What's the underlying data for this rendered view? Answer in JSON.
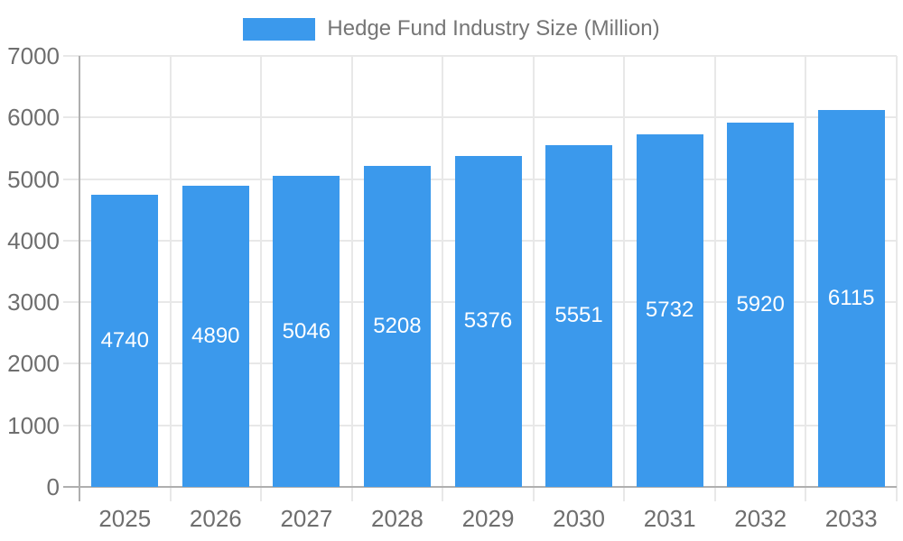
{
  "legend": {
    "label": "Hedge Fund Industry Size (Million)"
  },
  "chart_data": {
    "type": "bar",
    "title": "Hedge Fund Industry Size (Million)",
    "series_name": "Hedge Fund Industry Size (Million)",
    "categories": [
      "2025",
      "2026",
      "2027",
      "2028",
      "2029",
      "2030",
      "2031",
      "2032",
      "2033"
    ],
    "values": [
      4740,
      4890,
      5046,
      5208,
      5376,
      5551,
      5732,
      5920,
      6115
    ],
    "xlabel": "",
    "ylabel": "",
    "ylim": [
      0,
      7000
    ],
    "y_ticks": [
      0,
      1000,
      2000,
      3000,
      4000,
      5000,
      6000,
      7000
    ],
    "grid": true,
    "legend_position": "top",
    "value_labels_position": "inside-center",
    "colors": {
      "bar": "#3b99ec",
      "grid": "#e8e8e8",
      "axis": "#afafaf",
      "tick_text": "#6e6e6e",
      "legend_text": "#757575",
      "value_label": "#ffffff",
      "background": "#ffffff"
    }
  }
}
